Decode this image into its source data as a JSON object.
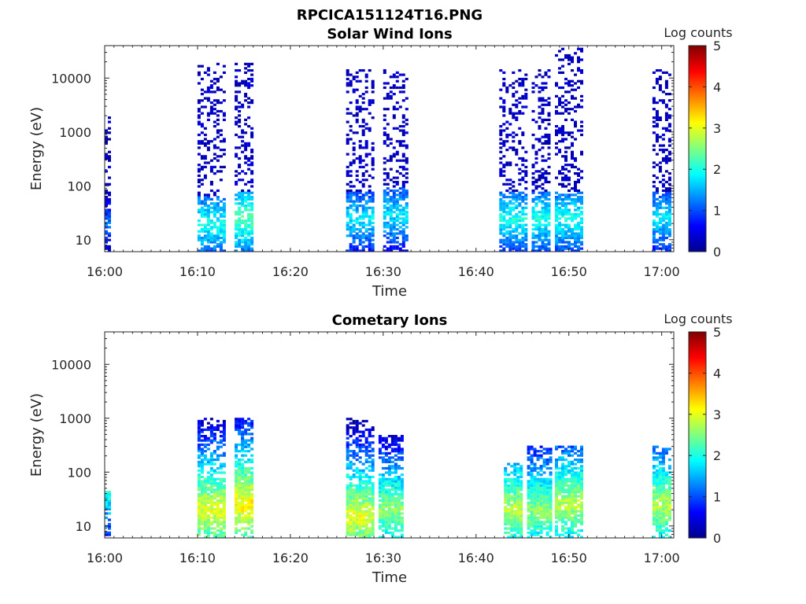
{
  "figure_title": "RPCICA151124T16.PNG",
  "chart_data": [
    {
      "type": "heatmap",
      "title": "Solar Wind Ions",
      "xlabel": "Time",
      "ylabel": "Energy (eV)",
      "x_ticks": [
        "16:00",
        "16:10",
        "16:20",
        "16:30",
        "16:40",
        "16:50",
        "17:00"
      ],
      "y_ticks": [
        "10",
        "100",
        "1000",
        "10000"
      ],
      "y_scale": "log",
      "ylim_ev": [
        6,
        40000
      ],
      "colorbar": {
        "label": "Log counts",
        "ticks": [
          "0",
          "1",
          "2",
          "3",
          "4",
          "5"
        ],
        "range": [
          0,
          5
        ],
        "colormap": "jet"
      },
      "bursts": [
        {
          "start": "16:00:00",
          "end": "16:00:30",
          "emax_ev": 2000,
          "peak_ev": 20,
          "peak_log_counts": 1.2
        },
        {
          "start": "16:10:00",
          "end": "16:13:00",
          "emax_ev": 20000,
          "peak_ev": 20,
          "peak_log_counts": 2.0
        },
        {
          "start": "16:14:00",
          "end": "16:16:00",
          "emax_ev": 20000,
          "peak_ev": 25,
          "peak_log_counts": 2.3
        },
        {
          "start": "16:26:00",
          "end": "16:29:00",
          "emax_ev": 15000,
          "peak_ev": 25,
          "peak_log_counts": 1.8
        },
        {
          "start": "16:30:00",
          "end": "16:32:30",
          "emax_ev": 15000,
          "peak_ev": 30,
          "peak_log_counts": 1.8
        },
        {
          "start": "16:42:30",
          "end": "16:45:30",
          "emax_ev": 15000,
          "peak_ev": 25,
          "peak_log_counts": 2.0
        },
        {
          "start": "16:46:00",
          "end": "16:48:00",
          "emax_ev": 15000,
          "peak_ev": 25,
          "peak_log_counts": 2.0
        },
        {
          "start": "16:48:30",
          "end": "16:51:30",
          "emax_ev": 35000,
          "peak_ev": 25,
          "peak_log_counts": 2.0
        },
        {
          "start": "16:59:00",
          "end": "17:01:00",
          "emax_ev": 15000,
          "peak_ev": 25,
          "peak_log_counts": 1.8
        }
      ]
    },
    {
      "type": "heatmap",
      "title": "Cometary Ions",
      "xlabel": "Time",
      "ylabel": "Energy (eV)",
      "x_ticks": [
        "16:00",
        "16:10",
        "16:20",
        "16:30",
        "16:40",
        "16:50",
        "17:00"
      ],
      "y_ticks": [
        "10",
        "100",
        "1000",
        "10000"
      ],
      "y_scale": "log",
      "ylim_ev": [
        6,
        40000
      ],
      "colorbar": {
        "label": "Log counts",
        "ticks": [
          "0",
          "1",
          "2",
          "3",
          "4",
          "5"
        ],
        "range": [
          0,
          5
        ],
        "colormap": "jet"
      },
      "bursts": [
        {
          "start": "16:00:00",
          "end": "16:00:30",
          "emax_ev": 45,
          "peak_ev": 40,
          "peak_log_counts": 2.0
        },
        {
          "start": "16:10:00",
          "end": "16:13:00",
          "emax_ev": 1000,
          "peak_ev": 20,
          "peak_log_counts": 3.0
        },
        {
          "start": "16:14:00",
          "end": "16:16:00",
          "emax_ev": 1000,
          "peak_ev": 25,
          "peak_log_counts": 3.2
        },
        {
          "start": "16:26:00",
          "end": "16:29:00",
          "emax_ev": 1000,
          "peak_ev": 15,
          "peak_log_counts": 3.0
        },
        {
          "start": "16:29:30",
          "end": "16:32:00",
          "emax_ev": 500,
          "peak_ev": 20,
          "peak_log_counts": 2.6
        },
        {
          "start": "16:43:00",
          "end": "16:45:00",
          "emax_ev": 150,
          "peak_ev": 20,
          "peak_log_counts": 2.8
        },
        {
          "start": "16:45:30",
          "end": "16:48:00",
          "emax_ev": 300,
          "peak_ev": 20,
          "peak_log_counts": 2.6
        },
        {
          "start": "16:48:30",
          "end": "16:51:30",
          "emax_ev": 300,
          "peak_ev": 25,
          "peak_log_counts": 2.8
        },
        {
          "start": "16:59:00",
          "end": "17:01:00",
          "emax_ev": 300,
          "peak_ev": 25,
          "peak_log_counts": 2.8
        }
      ]
    }
  ]
}
